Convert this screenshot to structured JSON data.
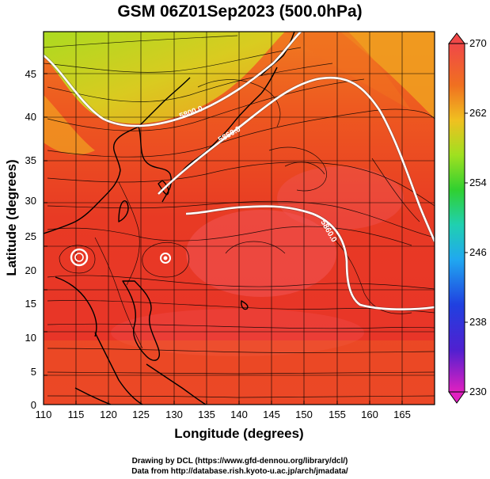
{
  "title": "GSM 06Z01Sep2023 (500.0hPa)",
  "xlabel": "Longitude (degrees)",
  "ylabel": "Latitude  (degrees)",
  "x_ticks": [
    "110",
    "115",
    "120",
    "125",
    "130",
    "135",
    "140",
    "145",
    "150",
    "155",
    "160",
    "165"
  ],
  "y_ticks": [
    "0",
    "5",
    "10",
    "15",
    "20",
    "25",
    "30",
    "35",
    "40",
    "45"
  ],
  "x_range": [
    110,
    170
  ],
  "y_range": [
    0,
    50
  ],
  "colorbar": {
    "ticks": [
      "230",
      "238",
      "246",
      "254",
      "262",
      "270"
    ],
    "range": [
      230,
      270
    ],
    "stops": [
      "#e020c0",
      "#2020d0",
      "#20a0f0",
      "#20d0c0",
      "#30d030",
      "#a0e020",
      "#f0c020",
      "#f08020",
      "#e83020",
      "#f05050"
    ]
  },
  "contours": [
    {
      "label": "5800.0"
    },
    {
      "label": "5860.0"
    },
    {
      "label": "5860.0"
    }
  ],
  "credits": {
    "line1": "Drawing by DCL (https://www.gfd-dennou.org/library/dcl/)",
    "line2": "Data from http://database.rish.kyoto-u.ac.jp/arch/jmadata/"
  }
}
